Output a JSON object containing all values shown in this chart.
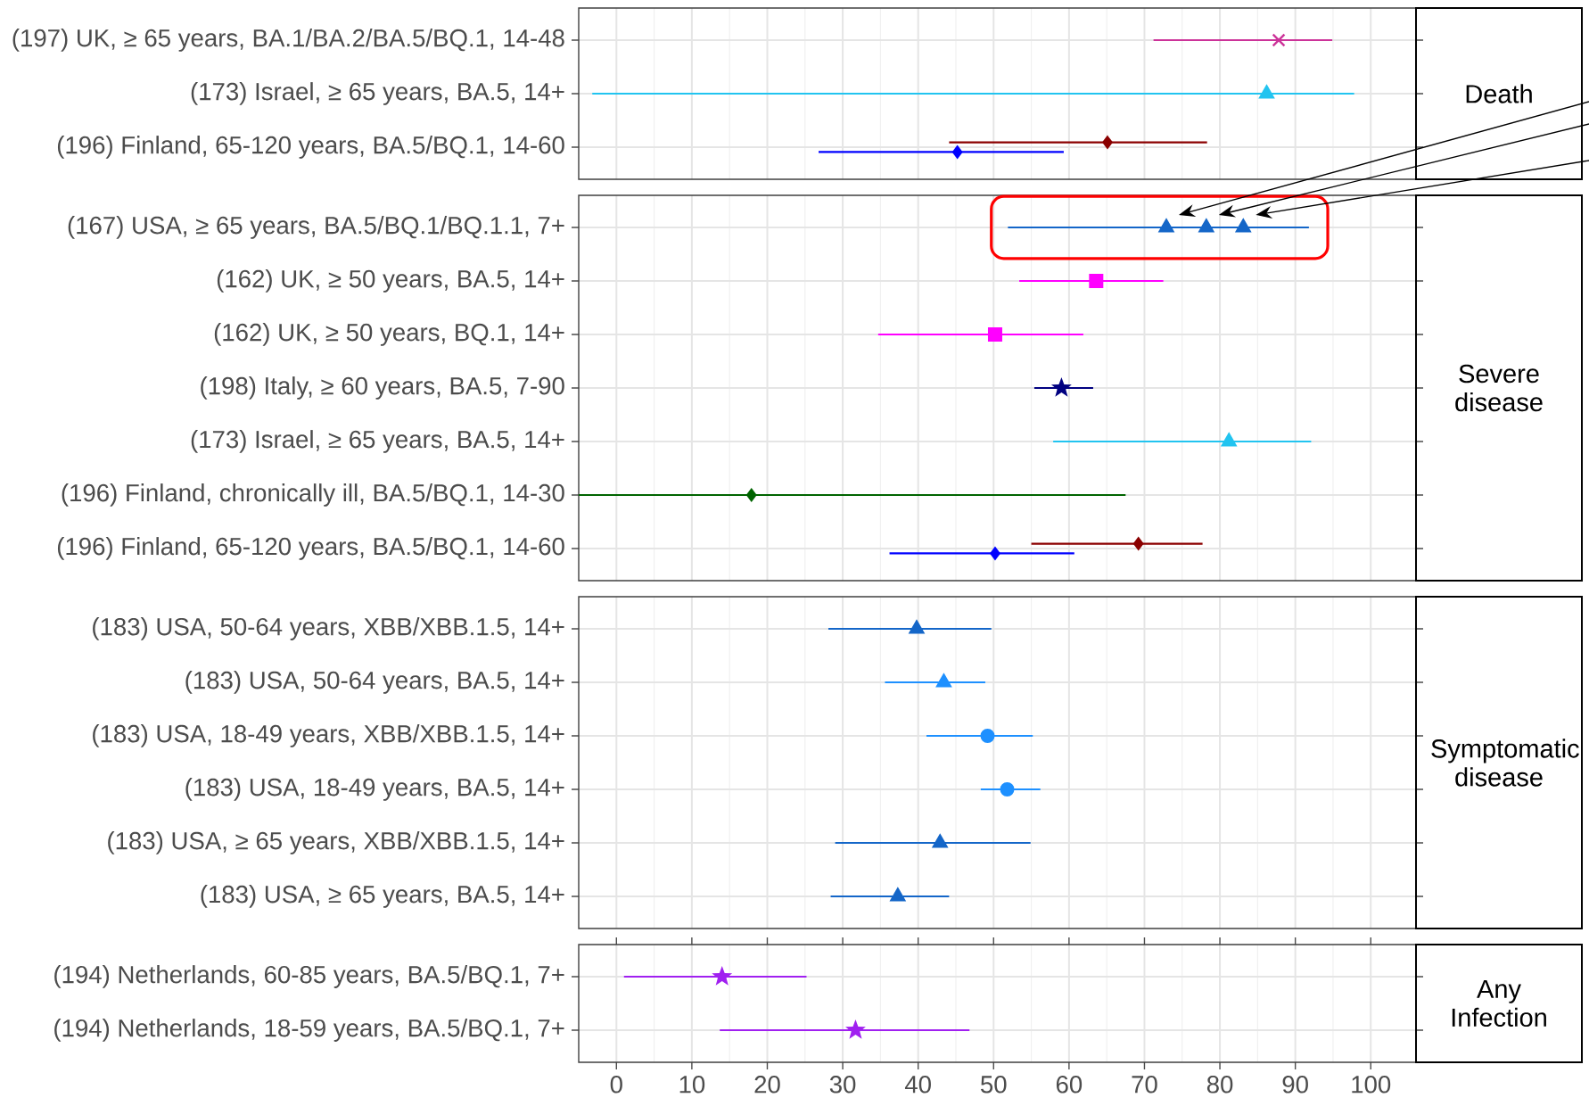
{
  "chart_data": [
    {
      "type": "scatter",
      "y2label": "Death",
      "orientation": "horizontal",
      "grid": true,
      "tick_labels": "y",
      "xlim": [
        -5,
        106
      ],
      "xticks": [
        0,
        10,
        20,
        30,
        40,
        50,
        60,
        70,
        80,
        90,
        100
      ],
      "categories": [
        "(197) UK, ≥ 65 years, BA.1/BA.2/BA.5/BQ.1, 14-48",
        "(173) Israel, ≥ 65 years, BA.5, 14+",
        "(196) Finland, 65-120 years, BA.5/BQ.1, 14-60"
      ],
      "series": [
        {
          "color": "#cc3399",
          "marker": "cross",
          "values": [
            87.8,
            null,
            null
          ],
          "errors": [
            [
              71.2,
              94.9
            ],
            null,
            null
          ]
        },
        {
          "color": "#22c4f0",
          "marker": "triangle",
          "values": [
            null,
            86.2,
            null
          ],
          "errors": [
            null,
            [
              -3.2,
              97.8
            ],
            null
          ]
        },
        {
          "color": "#8b0000",
          "marker": "diamond",
          "values": [
            null,
            null,
            65.1
          ],
          "errors": [
            null,
            null,
            [
              44.1,
              78.3
            ]
          ]
        },
        {
          "color": "#0000ff",
          "marker": "diamond",
          "values": [
            null,
            null,
            45.2
          ],
          "errors": [
            null,
            null,
            [
              26.8,
              59.3
            ]
          ]
        }
      ]
    },
    {
      "type": "scatter",
      "y2label": "Severe disease",
      "orientation": "horizontal",
      "grid": true,
      "tick_labels": "y",
      "xlim": [
        -5,
        106
      ],
      "xticks": [
        0,
        10,
        20,
        30,
        40,
        50,
        60,
        70,
        80,
        90,
        100
      ],
      "categories": [
        "(167) USA, ≥ 65 years, BA.5/BQ.1/BQ.1.1, 7+",
        "(162) UK, ≥ 50 years, BA.5, 14+",
        "(162) UK, ≥ 50 years, BQ.1, 14+",
        "(198) Italy, ≥ 60 years, BA.5, 7-90",
        "(173) Israel, ≥ 65 years, BA.5, 14+",
        "(196) Finland, chronically ill, BA.5/BQ.1, 14-30",
        "(196) Finland, 65-120 years, BA.5/BQ.1, 14-60"
      ],
      "series": [
        {
          "color": "#1466c8",
          "marker": "triangle",
          "values": [
            72.9,
            null,
            null,
            null,
            null,
            null,
            null
          ],
          "errors": [
            [
              51.9,
              89.0
            ],
            null,
            null,
            null,
            null,
            null,
            null
          ]
        },
        {
          "color": "#1466c8",
          "marker": "triangle",
          "values": [
            78.2,
            null,
            null,
            null,
            null,
            null,
            null
          ],
          "errors": [
            [
              56.8,
              91.8
            ],
            null,
            null,
            null,
            null,
            null,
            null
          ]
        },
        {
          "color": "#1466c8",
          "marker": "triangle",
          "values": [
            83.1,
            null,
            null,
            null,
            null,
            null,
            null
          ],
          "errors": [
            [
              56.8,
              89.0
            ],
            null,
            null,
            null,
            null,
            null,
            null
          ]
        },
        {
          "color": "#ff00ff",
          "marker": "square",
          "values": [
            null,
            63.6,
            50.2,
            null,
            null,
            null,
            null
          ],
          "errors": [
            null,
            [
              53.4,
              72.5
            ],
            [
              34.7,
              61.9
            ],
            null,
            null,
            null,
            null
          ]
        },
        {
          "color": "#000080",
          "marker": "star",
          "values": [
            null,
            null,
            null,
            59.0,
            null,
            null,
            null
          ],
          "errors": [
            null,
            null,
            null,
            [
              55.4,
              63.2
            ],
            null,
            null,
            null
          ]
        },
        {
          "color": "#22c4f0",
          "marker": "triangle",
          "values": [
            null,
            null,
            null,
            null,
            81.2,
            null,
            null
          ],
          "errors": [
            null,
            null,
            null,
            null,
            [
              57.9,
              92.1
            ],
            null,
            null
          ]
        },
        {
          "color": "#006400",
          "marker": "diamond",
          "values": [
            null,
            null,
            null,
            null,
            null,
            17.9,
            null
          ],
          "errors": [
            null,
            null,
            null,
            null,
            null,
            [
              -5,
              67.5
            ],
            null
          ]
        },
        {
          "color": "#8b0000",
          "marker": "diamond",
          "values": [
            null,
            null,
            null,
            null,
            null,
            null,
            69.2
          ],
          "errors": [
            null,
            null,
            null,
            null,
            null,
            null,
            [
              55.0,
              77.7
            ]
          ]
        },
        {
          "color": "#0000ff",
          "marker": "diamond",
          "values": [
            null,
            null,
            null,
            null,
            null,
            null,
            50.2
          ],
          "errors": [
            null,
            null,
            null,
            null,
            null,
            null,
            [
              36.2,
              60.7
            ]
          ]
        }
      ]
    },
    {
      "type": "scatter",
      "y2label": "Symptomatic disease",
      "orientation": "horizontal",
      "grid": true,
      "tick_labels": "y",
      "xlim": [
        -5,
        106
      ],
      "xticks": [
        0,
        10,
        20,
        30,
        40,
        50,
        60,
        70,
        80,
        90,
        100
      ],
      "categories": [
        "(183) USA, 50-64 years, XBB/XBB.1.5, 14+",
        "(183) USA, 50-64 years, BA.5, 14+",
        "(183) USA, 18-49 years, XBB/XBB.1.5, 14+",
        "(183) USA, 18-49 years, BA.5, 14+",
        "(183) USA, ≥ 65 years, XBB/XBB.1.5, 14+",
        "(183) USA, ≥ 65 years, BA.5, 14+"
      ],
      "series": [
        {
          "color": "#1466c8",
          "marker": "triangle",
          "values": [
            39.8,
            null,
            null,
            null,
            42.9,
            37.3
          ],
          "errors": [
            [
              28.1,
              49.7
            ],
            null,
            null,
            null,
            [
              29.0,
              54.9
            ],
            [
              28.4,
              44.1
            ]
          ]
        },
        {
          "color": "#1e90ff",
          "marker": "triangle",
          "values": [
            null,
            43.4,
            null,
            null,
            null,
            null
          ],
          "errors": [
            null,
            [
              35.6,
              48.9
            ],
            null,
            null,
            null,
            null
          ]
        },
        {
          "color": "#1e90ff",
          "marker": "circle",
          "values": [
            null,
            null,
            49.2,
            51.8,
            null,
            null
          ],
          "errors": [
            null,
            null,
            [
              41.1,
              55.2
            ],
            [
              48.3,
              56.2
            ],
            null,
            null
          ]
        }
      ]
    },
    {
      "type": "scatter",
      "y2label": "Any Infection",
      "orientation": "horizontal",
      "grid": true,
      "xlim": [
        -5,
        106
      ],
      "xticks": [
        0,
        10,
        20,
        30,
        40,
        50,
        60,
        70,
        80,
        90,
        100
      ],
      "categories": [
        "(194) Netherlands, 60-85 years, BA.5/BQ.1, 7+",
        "(194) Netherlands, 18-59 years, BA.5/BQ.1, 7+"
      ],
      "series": [
        {
          "color": "#a020f0",
          "marker": "star",
          "values": [
            14.0,
            31.7
          ],
          "errors": [
            [
              1.0,
              25.2
            ],
            [
              13.7,
              46.8
            ]
          ]
        }
      ]
    }
  ]
}
